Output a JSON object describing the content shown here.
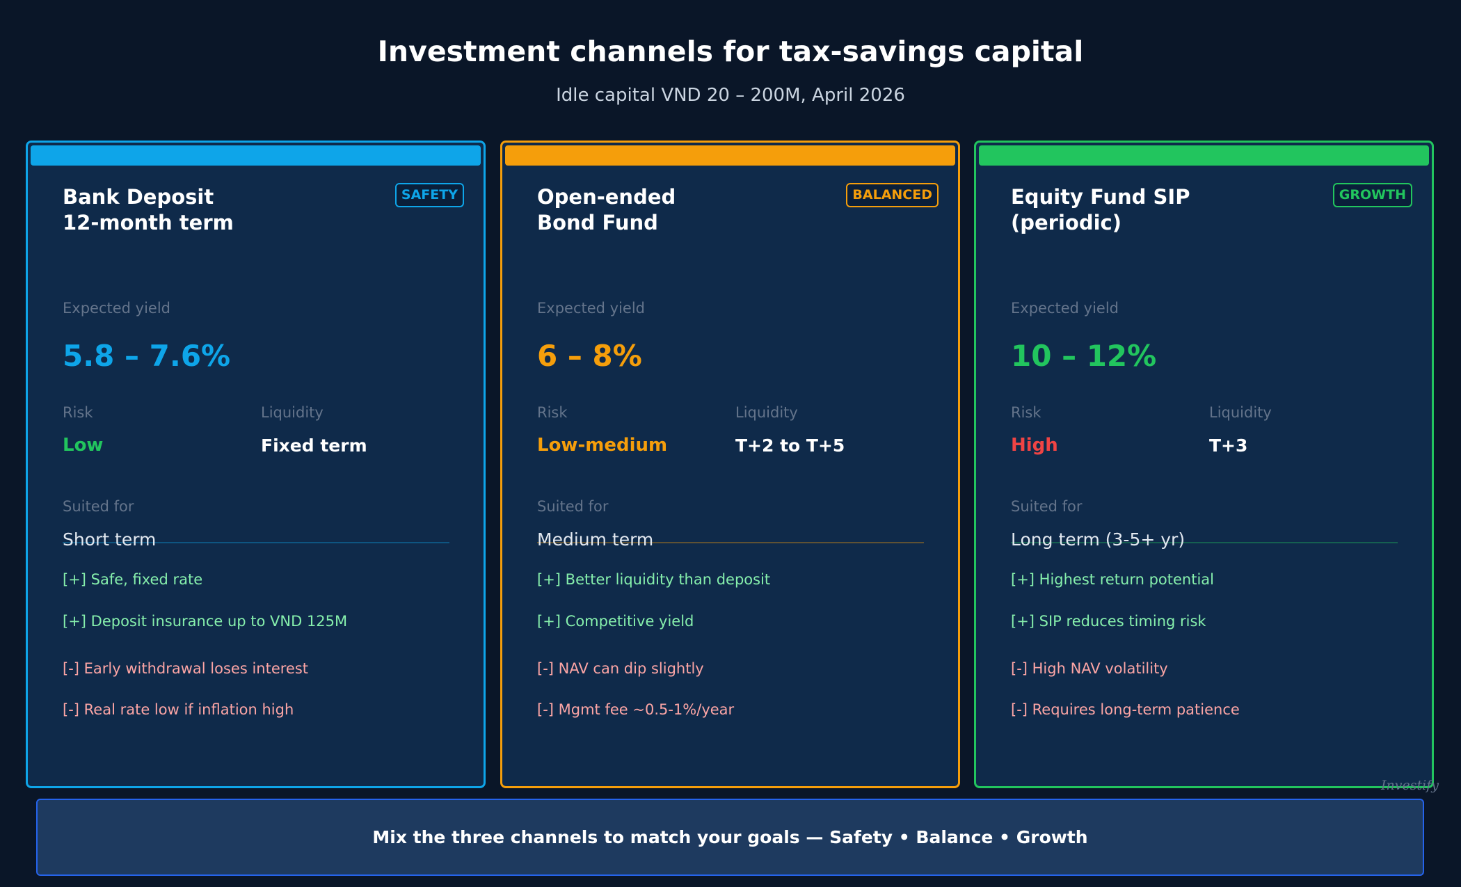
{
  "title": "Investment channels for tax-savings capital",
  "subtitle": "Idle capital VND 20 – 200M, April 2026",
  "labels": {
    "yield": "Expected yield",
    "risk": "Risk",
    "liquidity": "Liquidity",
    "suited": "Suited for"
  },
  "cards": [
    {
      "title1": "Bank Deposit",
      "title2": "12-month term",
      "badge": "SAFETY",
      "accent": "#0ea5e9",
      "yield": "5.8 – 7.6%",
      "risk": "Low",
      "risk_color": "#22c55e",
      "liquidity": "Fixed term",
      "suited": "Short term",
      "pros": [
        "[+] Safe, fixed rate",
        "[+] Deposit insurance up to VND 125M"
      ],
      "cons": [
        "[-] Early withdrawal loses interest",
        "[-] Real rate low if inflation high"
      ]
    },
    {
      "title1": "Open-ended",
      "title2": "Bond Fund",
      "badge": "BALANCED",
      "accent": "#f59e0b",
      "yield": "6 – 8%",
      "risk": "Low-medium",
      "risk_color": "#f59e0b",
      "liquidity": "T+2 to T+5",
      "suited": "Medium term",
      "pros": [
        "[+] Better liquidity than deposit",
        "[+] Competitive yield"
      ],
      "cons": [
        "[-] NAV can dip slightly",
        "[-] Mgmt fee ~0.5-1%/year"
      ]
    },
    {
      "title1": "Equity Fund SIP",
      "title2": "(periodic)",
      "badge": "GROWTH",
      "accent": "#22c55e",
      "yield": "10 – 12%",
      "risk": "High",
      "risk_color": "#ef4444",
      "liquidity": "T+3",
      "suited": "Long term (3-5+ yr)",
      "pros": [
        "[+] Highest return potential",
        "[+] SIP reduces timing risk"
      ],
      "cons": [
        "[-] High NAV volatility",
        "[-] Requires long-term patience"
      ]
    }
  ],
  "footer": "Mix the three channels to match your goals — Safety • Balance • Growth",
  "watermark": "Investify"
}
